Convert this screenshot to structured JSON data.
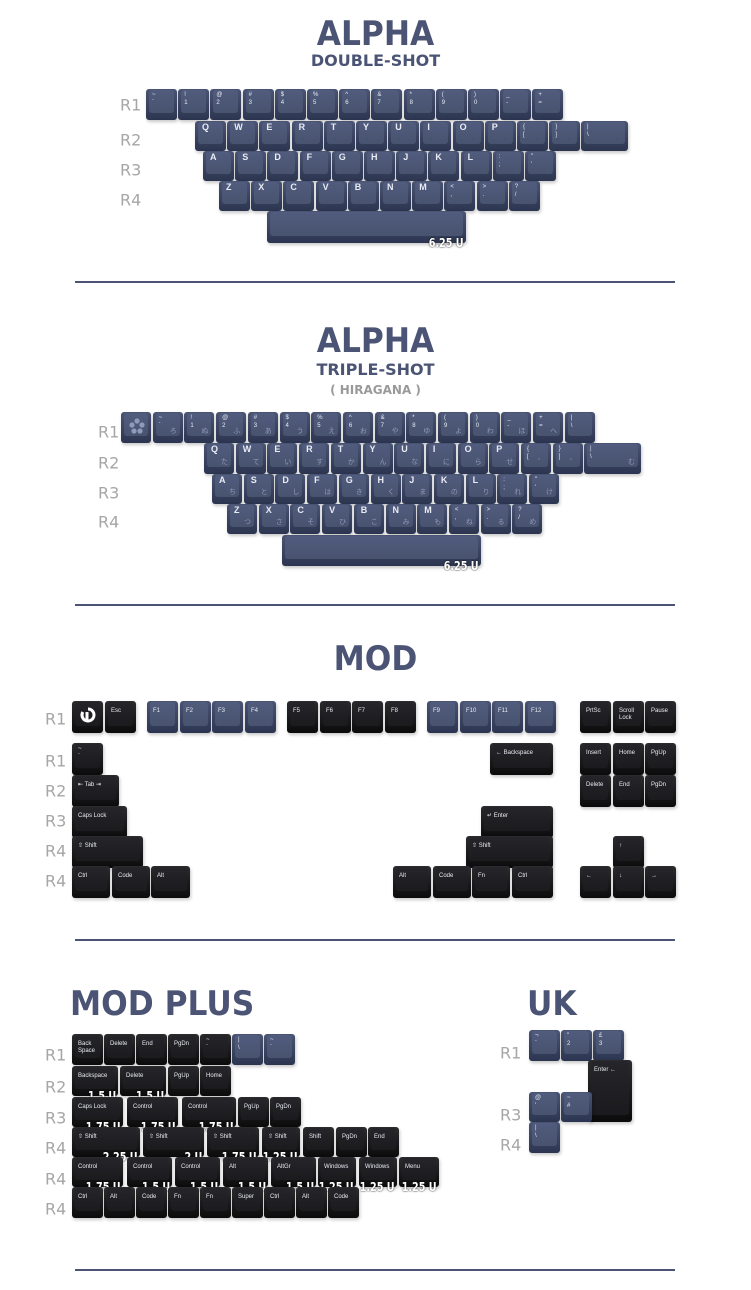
{
  "colors": {
    "navy": "#4d5878",
    "black": "#1e1e20",
    "accent": "#4b5474",
    "row_label": "#a6a6a6"
  },
  "alpha_double_shot": {
    "title": "ALPHA",
    "subtitle": "DOUBLE-SHOT",
    "row_labels": [
      "R1",
      "R2",
      "R3",
      "R4"
    ],
    "rows": [
      [
        {
          "t": "~",
          "b": "`",
          "c": "navy"
        },
        {
          "t": "!",
          "b": "1",
          "c": "navy"
        },
        {
          "t": "@",
          "b": "2",
          "c": "navy"
        },
        {
          "t": "#",
          "b": "3",
          "c": "navy"
        },
        {
          "t": "$",
          "b": "4",
          "c": "navy"
        },
        {
          "t": "%",
          "b": "5",
          "c": "navy"
        },
        {
          "t": "^",
          "b": "6",
          "c": "navy"
        },
        {
          "t": "&",
          "b": "7",
          "c": "navy"
        },
        {
          "t": "*",
          "b": "8",
          "c": "navy"
        },
        {
          "t": "(",
          "b": "9",
          "c": "navy"
        },
        {
          "t": ")",
          "b": "0",
          "c": "navy"
        },
        {
          "t": "_",
          "b": "-",
          "c": "navy"
        },
        {
          "t": "+",
          "b": "=",
          "c": "navy"
        }
      ],
      [
        {
          "a": "Q",
          "c": "navy"
        },
        {
          "a": "W",
          "c": "navy"
        },
        {
          "a": "E",
          "c": "navy"
        },
        {
          "a": "R",
          "c": "navy"
        },
        {
          "a": "T",
          "c": "navy"
        },
        {
          "a": "Y",
          "c": "navy"
        },
        {
          "a": "U",
          "c": "navy"
        },
        {
          "a": "I",
          "c": "navy"
        },
        {
          "a": "O",
          "c": "navy"
        },
        {
          "a": "P",
          "c": "navy"
        },
        {
          "t": "{",
          "b": "[",
          "c": "navy"
        },
        {
          "t": "}",
          "b": "]",
          "c": "navy"
        },
        {
          "t": "|",
          "b": "\\",
          "c": "navy"
        }
      ],
      [
        {
          "a": "A",
          "c": "navy"
        },
        {
          "a": "S",
          "c": "navy"
        },
        {
          "a": "D",
          "c": "navy"
        },
        {
          "a": "F",
          "c": "navy"
        },
        {
          "a": "G",
          "c": "navy"
        },
        {
          "a": "H",
          "c": "navy"
        },
        {
          "a": "J",
          "c": "navy"
        },
        {
          "a": "K",
          "c": "navy"
        },
        {
          "a": "L",
          "c": "navy"
        },
        {
          "t": ":",
          "b": ";",
          "c": "navy"
        },
        {
          "t": "\"",
          "b": "'",
          "c": "navy"
        }
      ],
      [
        {
          "a": "Z",
          "c": "navy"
        },
        {
          "a": "X",
          "c": "navy"
        },
        {
          "a": "C",
          "c": "navy"
        },
        {
          "a": "V",
          "c": "navy"
        },
        {
          "a": "B",
          "c": "navy"
        },
        {
          "a": "N",
          "c": "navy"
        },
        {
          "a": "M",
          "c": "navy"
        },
        {
          "t": "<",
          "b": ",",
          "c": "navy"
        },
        {
          "t": ">",
          "b": ".",
          "c": "navy"
        },
        {
          "t": "?",
          "b": "/",
          "c": "navy"
        }
      ],
      [
        {
          "size": "6.25 U",
          "c": "navy"
        }
      ]
    ]
  },
  "alpha_triple_shot": {
    "title": "ALPHA",
    "subtitle": "TRIPLE-SHOT",
    "note": "( HIRAGANA )",
    "row_labels": [
      "R1",
      "R2",
      "R3",
      "R4"
    ],
    "rows": [
      [
        {
          "icon": "flower-logo-icon",
          "c": "navy"
        },
        {
          "t": "~",
          "b": "`",
          "k": "ろ",
          "c": "navy"
        },
        {
          "t": "!",
          "b": "1",
          "k": "ぬ",
          "c": "navy"
        },
        {
          "t": "@",
          "b": "2",
          "k": "ふ",
          "c": "navy"
        },
        {
          "t": "#",
          "b": "3",
          "k": "あ",
          "c": "navy"
        },
        {
          "t": "$",
          "b": "4",
          "k": "う",
          "c": "navy"
        },
        {
          "t": "%",
          "b": "5",
          "k": "え",
          "c": "navy"
        },
        {
          "t": "^",
          "b": "6",
          "k": "お",
          "c": "navy"
        },
        {
          "t": "&",
          "b": "7",
          "k": "や",
          "c": "navy"
        },
        {
          "t": "*",
          "b": "8",
          "k": "ゆ",
          "c": "navy"
        },
        {
          "t": "(",
          "b": "9",
          "k": "よ",
          "c": "navy"
        },
        {
          "t": ")",
          "b": "0",
          "k": "わ",
          "c": "navy"
        },
        {
          "t": "_",
          "b": "-",
          "k": "ほ",
          "c": "navy"
        },
        {
          "t": "+",
          "b": "=",
          "k": "へ",
          "c": "navy"
        },
        {
          "t": "|",
          "b": "\\",
          "c": "navy"
        }
      ],
      [
        {
          "a": "Q",
          "k": "た",
          "c": "navy"
        },
        {
          "a": "W",
          "k": "て",
          "c": "navy"
        },
        {
          "a": "E",
          "k": "い",
          "c": "navy"
        },
        {
          "a": "R",
          "k": "す",
          "c": "navy"
        },
        {
          "a": "T",
          "k": "か",
          "c": "navy"
        },
        {
          "a": "Y",
          "k": "ん",
          "c": "navy"
        },
        {
          "a": "U",
          "k": "な",
          "c": "navy"
        },
        {
          "a": "I",
          "k": "に",
          "c": "navy"
        },
        {
          "a": "O",
          "k": "ら",
          "c": "navy"
        },
        {
          "a": "P",
          "k": "せ",
          "c": "navy"
        },
        {
          "t": "{",
          "b": "[",
          "k": "゛",
          "c": "navy"
        },
        {
          "t": "}",
          "b": "]",
          "k": "゜",
          "c": "navy"
        },
        {
          "t": "|",
          "b": "\\",
          "k": "む",
          "c": "navy"
        }
      ],
      [
        {
          "a": "A",
          "k": "ち",
          "c": "navy"
        },
        {
          "a": "S",
          "k": "と",
          "c": "navy"
        },
        {
          "a": "D",
          "k": "し",
          "c": "navy"
        },
        {
          "a": "F",
          "k": "は",
          "c": "navy"
        },
        {
          "a": "G",
          "k": "き",
          "c": "navy"
        },
        {
          "a": "H",
          "k": "く",
          "c": "navy"
        },
        {
          "a": "J",
          "k": "ま",
          "c": "navy"
        },
        {
          "a": "K",
          "k": "の",
          "c": "navy"
        },
        {
          "a": "L",
          "k": "り",
          "c": "navy"
        },
        {
          "t": ":",
          "b": ";",
          "k": "れ",
          "c": "navy"
        },
        {
          "t": "\"",
          "b": "'",
          "k": "け",
          "c": "navy"
        }
      ],
      [
        {
          "a": "Z",
          "k": "つ",
          "c": "navy"
        },
        {
          "a": "X",
          "k": "さ",
          "c": "navy"
        },
        {
          "a": "C",
          "k": "そ",
          "c": "navy"
        },
        {
          "a": "V",
          "k": "ひ",
          "c": "navy"
        },
        {
          "a": "B",
          "k": "こ",
          "c": "navy"
        },
        {
          "a": "N",
          "k": "み",
          "c": "navy"
        },
        {
          "a": "M",
          "k": "も",
          "c": "navy"
        },
        {
          "t": "<",
          "b": ",",
          "k": "ね",
          "c": "navy"
        },
        {
          "t": ">",
          "b": ".",
          "k": "る",
          "c": "navy"
        },
        {
          "t": "?",
          "b": "/",
          "k": "め",
          "c": "navy"
        }
      ],
      [
        {
          "size": "6.25 U",
          "c": "navy"
        }
      ]
    ]
  },
  "mod": {
    "title": "MOD",
    "row_labels": [
      "R1",
      "R1",
      "R2",
      "R3",
      "R4",
      "R4"
    ],
    "rows": [
      [
        {
          "icon": "power-logo-icon",
          "c": "black"
        },
        {
          "m": "Esc",
          "c": "black"
        },
        {
          "m": "F1",
          "c": "navy"
        },
        {
          "m": "F2",
          "c": "navy"
        },
        {
          "m": "F3",
          "c": "navy"
        },
        {
          "m": "F4",
          "c": "navy"
        },
        {
          "m": "F5",
          "c": "black"
        },
        {
          "m": "F6",
          "c": "black"
        },
        {
          "m": "F7",
          "c": "black"
        },
        {
          "m": "F8",
          "c": "black"
        },
        {
          "m": "F9",
          "c": "navy"
        },
        {
          "m": "F10",
          "c": "navy"
        },
        {
          "m": "F11",
          "c": "navy"
        },
        {
          "m": "F12",
          "c": "navy"
        },
        {
          "m": "PrtSc",
          "c": "black"
        },
        {
          "m": "Scroll Lock",
          "c": "black"
        },
        {
          "m": "Pause",
          "c": "black"
        }
      ],
      [
        {
          "t": "~",
          "b": "`",
          "c": "black"
        },
        {
          "m": "← Backspace",
          "c": "black"
        },
        {
          "m": "Insert",
          "c": "black"
        },
        {
          "m": "Home",
          "c": "black"
        },
        {
          "m": "PgUp",
          "c": "black"
        }
      ],
      [
        {
          "m": "⇤ Tab ⇥",
          "c": "black"
        },
        {
          "m": "Delete",
          "c": "black"
        },
        {
          "m": "End",
          "c": "black"
        },
        {
          "m": "PgDn",
          "c": "black"
        }
      ],
      [
        {
          "m": "Caps Lock",
          "c": "black"
        },
        {
          "m": "↵ Enter",
          "c": "black"
        }
      ],
      [
        {
          "m": "⇧ Shift",
          "c": "black"
        },
        {
          "m": "⇧ Shift",
          "c": "black"
        },
        {
          "m": "↑",
          "c": "black"
        }
      ],
      [
        {
          "m": "Ctrl",
          "c": "black"
        },
        {
          "m": "Code",
          "c": "black"
        },
        {
          "m": "Alt",
          "c": "black"
        },
        {
          "m": "Alt",
          "c": "black"
        },
        {
          "m": "Code",
          "c": "black"
        },
        {
          "m": "Fn",
          "c": "black"
        },
        {
          "m": "Ctrl",
          "c": "black"
        },
        {
          "m": "←",
          "c": "black"
        },
        {
          "m": "↓",
          "c": "black"
        },
        {
          "m": "→",
          "c": "black"
        }
      ]
    ]
  },
  "mod_plus": {
    "title": "MOD PLUS",
    "row_labels": [
      "R1",
      "R2",
      "R3",
      "R4",
      "R4",
      "R4"
    ],
    "rows": [
      [
        {
          "m": "Back Space",
          "c": "black"
        },
        {
          "m": "Delete",
          "c": "black"
        },
        {
          "m": "End",
          "c": "black"
        },
        {
          "m": "PgDn",
          "c": "black"
        },
        {
          "t": "~",
          "b": "`",
          "c": "black"
        },
        {
          "t": "|",
          "b": "\\",
          "c": "navy"
        },
        {
          "t": "~",
          "b": "`",
          "c": "navy"
        }
      ],
      [
        {
          "m": "Backspace",
          "size": "1.5 U",
          "c": "black"
        },
        {
          "m": "Delete",
          "size": "1.5 U",
          "c": "black"
        },
        {
          "m": "PgUp",
          "c": "black"
        },
        {
          "m": "Home",
          "c": "black"
        }
      ],
      [
        {
          "m": "Caps Lock",
          "size": "1.75 U",
          "c": "black"
        },
        {
          "m": "Control",
          "size": "1.75 U",
          "c": "black"
        },
        {
          "m": "Control",
          "size": "1.75 U",
          "c": "black"
        },
        {
          "m": "PgUp",
          "c": "black"
        },
        {
          "m": "PgDn",
          "c": "black"
        }
      ],
      [
        {
          "m": "⇧ Shift",
          "size": "2.25 U",
          "c": "black"
        },
        {
          "m": "⇧ Shift",
          "size": "2 U",
          "c": "black"
        },
        {
          "m": "⇧ Shift",
          "size": "1.75 U",
          "c": "black"
        },
        {
          "m": "⇧ Shift",
          "size": "1.25 U",
          "c": "black"
        },
        {
          "m": "Shift",
          "c": "black"
        },
        {
          "m": "PgDn",
          "c": "black"
        },
        {
          "m": "End",
          "c": "black"
        }
      ],
      [
        {
          "m": "Control",
          "size": "1.75 U",
          "c": "black"
        },
        {
          "m": "Control",
          "size": "1.5 U",
          "c": "black"
        },
        {
          "m": "Control",
          "size": "1.5 U",
          "c": "black"
        },
        {
          "m": "Alt",
          "size": "1.5 U",
          "c": "black"
        },
        {
          "m": "AltGr",
          "size": "1.5 U",
          "c": "black"
        },
        {
          "m": "Windows",
          "size": "1.25 U",
          "c": "black"
        },
        {
          "m": "Windows",
          "size": "1.25 U",
          "c": "black"
        },
        {
          "m": "Menu",
          "size": "1.25 U",
          "c": "black"
        }
      ],
      [
        {
          "m": "Ctrl",
          "c": "black"
        },
        {
          "m": "Alt",
          "c": "black"
        },
        {
          "m": "Code",
          "c": "black"
        },
        {
          "m": "Fn",
          "c": "black"
        },
        {
          "m": "Fn",
          "c": "black"
        },
        {
          "m": "Super",
          "c": "black"
        },
        {
          "m": "Ctrl",
          "c": "black"
        },
        {
          "m": "Alt",
          "c": "black"
        },
        {
          "m": "Code",
          "c": "black"
        }
      ]
    ]
  },
  "uk": {
    "title": "UK",
    "row_labels": [
      "R1",
      "R3",
      "R4"
    ],
    "rows": [
      [
        {
          "t": "¬",
          "b": "`",
          "c": "navy"
        },
        {
          "t": "\"",
          "b": "2",
          "c": "navy"
        },
        {
          "t": "£",
          "b": "3",
          "c": "navy"
        },
        {
          "m": "Enter ←",
          "c": "black"
        }
      ],
      [
        {
          "t": "@",
          "b": "'",
          "c": "navy"
        },
        {
          "t": "~",
          "b": "#",
          "c": "navy"
        }
      ],
      [
        {
          "t": "|",
          "b": "\\",
          "c": "navy"
        }
      ]
    ]
  }
}
